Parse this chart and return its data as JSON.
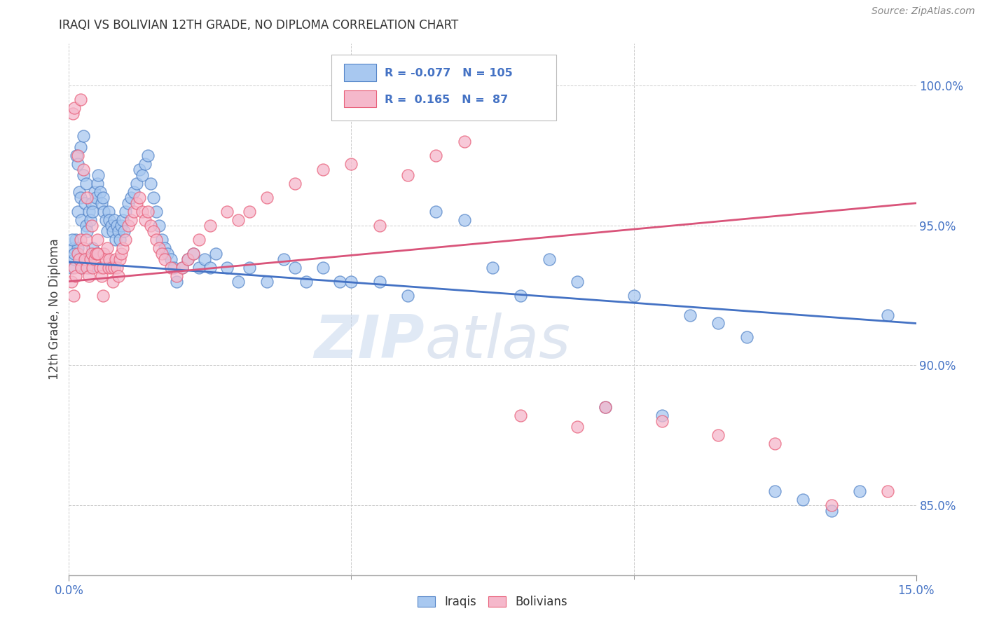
{
  "title": "IRAQI VS BOLIVIAN 12TH GRADE, NO DIPLOMA CORRELATION CHART",
  "source": "Source: ZipAtlas.com",
  "ylabel": "12th Grade, No Diploma",
  "xlim": [
    0.0,
    15.0
  ],
  "ylim": [
    82.5,
    101.5
  ],
  "ytick_values": [
    85.0,
    90.0,
    95.0,
    100.0
  ],
  "ytick_labels": [
    "85.0%",
    "90.0%",
    "95.0%",
    "100.0%"
  ],
  "legend_r_iraqi": "-0.077",
  "legend_n_iraqi": "105",
  "legend_r_bolivian": "0.165",
  "legend_n_bolivian": "87",
  "iraqi_color": "#A8C8F0",
  "bolivian_color": "#F5B8CB",
  "iraqi_edge_color": "#5585C8",
  "bolivian_edge_color": "#E8607A",
  "iraqi_line_color": "#4472C4",
  "bolivian_line_color": "#D9547A",
  "watermark_color": "#D0DCF0",
  "background_color": "#FFFFFF",
  "grid_color": "#CCCCCC",
  "iraqi_trend_x0": 0.0,
  "iraqi_trend_y0": 93.7,
  "iraqi_trend_x1": 15.0,
  "iraqi_trend_y1": 91.5,
  "bolivian_trend_x0": 0.0,
  "bolivian_trend_y0": 93.0,
  "bolivian_trend_x1": 15.0,
  "bolivian_trend_y1": 95.8,
  "iraqi_x": [
    0.05,
    0.08,
    0.1,
    0.12,
    0.15,
    0.15,
    0.18,
    0.2,
    0.2,
    0.22,
    0.25,
    0.25,
    0.28,
    0.3,
    0.3,
    0.32,
    0.35,
    0.38,
    0.4,
    0.42,
    0.45,
    0.48,
    0.5,
    0.52,
    0.55,
    0.58,
    0.6,
    0.62,
    0.65,
    0.68,
    0.7,
    0.72,
    0.75,
    0.78,
    0.8,
    0.82,
    0.85,
    0.88,
    0.9,
    0.92,
    0.95,
    0.98,
    1.0,
    1.05,
    1.1,
    1.15,
    1.2,
    1.25,
    1.3,
    1.35,
    1.4,
    1.45,
    1.5,
    1.55,
    1.6,
    1.65,
    1.7,
    1.75,
    1.8,
    1.85,
    1.9,
    2.0,
    2.1,
    2.2,
    2.3,
    2.4,
    2.5,
    2.6,
    2.8,
    3.0,
    3.2,
    3.5,
    3.8,
    4.0,
    4.2,
    4.5,
    4.8,
    5.0,
    5.5,
    6.0,
    6.5,
    7.0,
    7.5,
    8.0,
    8.5,
    9.0,
    9.5,
    10.0,
    10.5,
    11.0,
    11.5,
    12.0,
    12.5,
    13.0,
    13.5,
    14.0,
    14.5,
    0.06,
    0.09,
    0.13,
    0.16,
    0.22,
    0.28,
    0.35,
    0.42
  ],
  "iraqi_y": [
    93.5,
    94.2,
    93.8,
    94.5,
    95.5,
    94.2,
    96.2,
    97.8,
    96.0,
    95.2,
    98.2,
    96.8,
    95.8,
    96.5,
    95.0,
    94.8,
    95.5,
    95.2,
    95.8,
    95.5,
    96.2,
    96.0,
    96.5,
    96.8,
    96.2,
    95.8,
    96.0,
    95.5,
    95.2,
    94.8,
    95.5,
    95.2,
    95.0,
    94.8,
    95.2,
    94.5,
    95.0,
    94.8,
    94.5,
    95.0,
    95.2,
    94.8,
    95.5,
    95.8,
    96.0,
    96.2,
    96.5,
    97.0,
    96.8,
    97.2,
    97.5,
    96.5,
    96.0,
    95.5,
    95.0,
    94.5,
    94.2,
    94.0,
    93.8,
    93.5,
    93.0,
    93.5,
    93.8,
    94.0,
    93.5,
    93.8,
    93.5,
    94.0,
    93.5,
    93.0,
    93.5,
    93.0,
    93.8,
    93.5,
    93.0,
    93.5,
    93.0,
    93.0,
    93.0,
    92.5,
    95.5,
    95.2,
    93.5,
    92.5,
    93.8,
    93.0,
    88.5,
    92.5,
    88.2,
    91.8,
    91.5,
    91.0,
    85.5,
    85.2,
    84.8,
    85.5,
    91.8,
    94.5,
    94.0,
    97.5,
    97.2,
    93.5,
    93.8,
    93.5,
    94.2
  ],
  "bolivian_x": [
    0.05,
    0.08,
    0.1,
    0.12,
    0.15,
    0.18,
    0.2,
    0.22,
    0.25,
    0.28,
    0.3,
    0.32,
    0.35,
    0.38,
    0.4,
    0.42,
    0.45,
    0.48,
    0.5,
    0.52,
    0.55,
    0.58,
    0.6,
    0.62,
    0.65,
    0.68,
    0.7,
    0.72,
    0.75,
    0.78,
    0.8,
    0.82,
    0.85,
    0.88,
    0.9,
    0.92,
    0.95,
    1.0,
    1.05,
    1.1,
    1.15,
    1.2,
    1.25,
    1.3,
    1.35,
    1.4,
    1.45,
    1.5,
    1.55,
    1.6,
    1.65,
    1.7,
    1.8,
    1.9,
    2.0,
    2.1,
    2.2,
    2.3,
    2.5,
    2.8,
    3.0,
    3.2,
    3.5,
    4.0,
    4.5,
    5.0,
    5.5,
    6.0,
    6.5,
    7.0,
    8.0,
    9.0,
    9.5,
    10.5,
    11.5,
    12.5,
    13.5,
    14.5,
    0.07,
    0.1,
    0.15,
    0.2,
    0.25,
    0.32,
    0.4,
    0.5,
    0.6
  ],
  "bolivian_y": [
    93.0,
    92.5,
    93.5,
    93.2,
    94.0,
    93.8,
    94.5,
    93.5,
    94.2,
    93.8,
    94.5,
    93.5,
    93.2,
    93.8,
    94.0,
    93.5,
    93.8,
    94.0,
    94.5,
    94.0,
    93.5,
    93.2,
    93.5,
    94.0,
    93.8,
    94.2,
    93.5,
    93.8,
    93.5,
    93.0,
    93.5,
    93.8,
    93.5,
    93.2,
    93.8,
    94.0,
    94.2,
    94.5,
    95.0,
    95.2,
    95.5,
    95.8,
    96.0,
    95.5,
    95.2,
    95.5,
    95.0,
    94.8,
    94.5,
    94.2,
    94.0,
    93.8,
    93.5,
    93.2,
    93.5,
    93.8,
    94.0,
    94.5,
    95.0,
    95.5,
    95.2,
    95.5,
    96.0,
    96.5,
    97.0,
    97.2,
    95.0,
    96.8,
    97.5,
    98.0,
    88.2,
    87.8,
    88.5,
    88.0,
    87.5,
    87.2,
    85.0,
    85.5,
    99.0,
    99.2,
    97.5,
    99.5,
    97.0,
    96.0,
    95.0,
    94.0,
    92.5
  ]
}
